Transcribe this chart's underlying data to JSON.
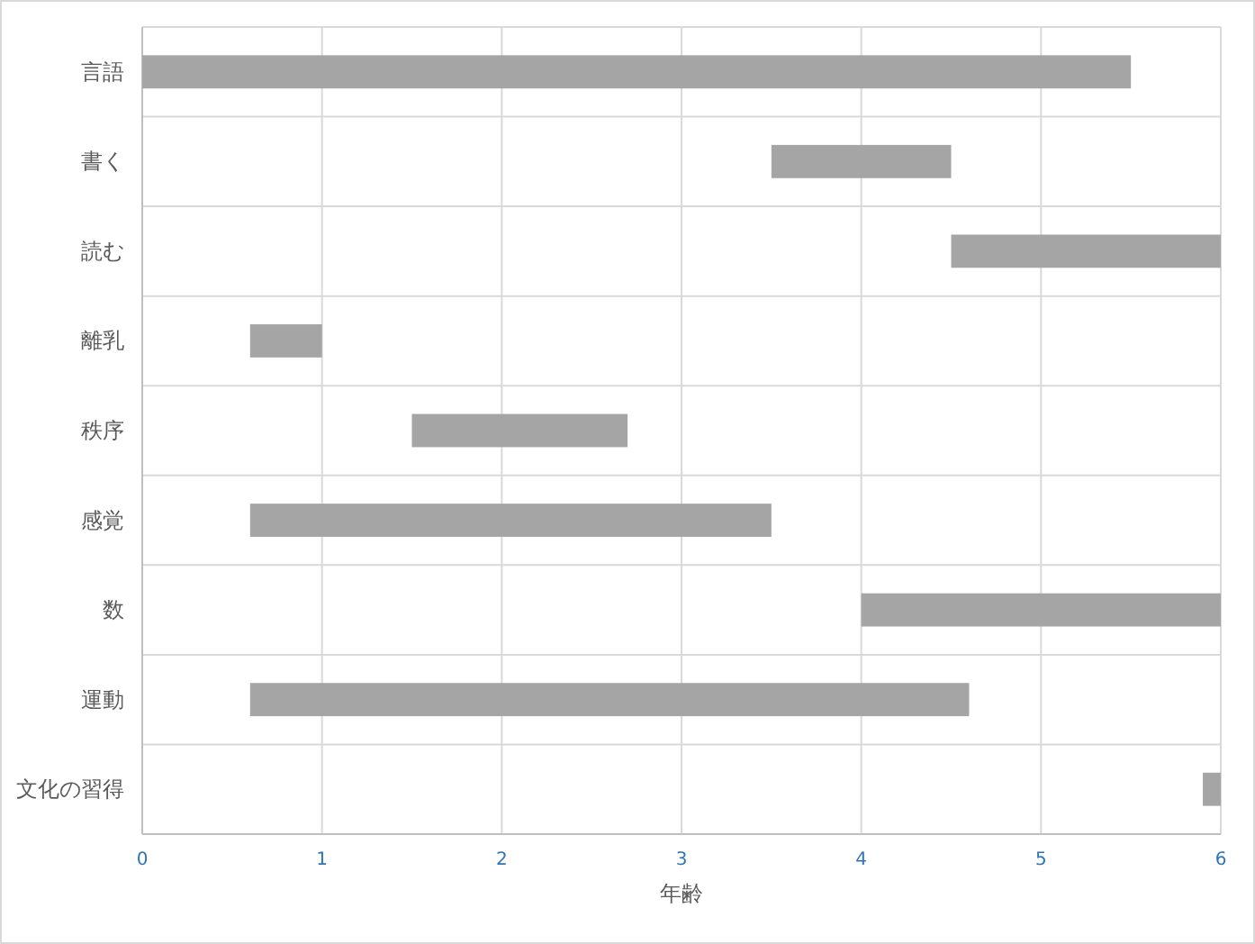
{
  "chart_data": {
    "type": "bar",
    "orientation": "horizontal",
    "xlabel": "年齢",
    "categories": [
      "言語",
      "書く",
      "読む",
      "離乳",
      "秩序",
      "感覚",
      "数",
      "運動",
      "文化の習得"
    ],
    "base": [
      0,
      3.5,
      4.5,
      0.6,
      1.5,
      0.6,
      4.0,
      0.6,
      5.9
    ],
    "values": [
      5.5,
      1.0,
      1.5,
      0.4,
      1.2,
      2.9,
      2.0,
      4.0,
      0.1
    ],
    "color": "#a5a5a5",
    "xlim": [
      0,
      6
    ],
    "xticks": [
      0,
      1,
      2,
      3,
      4,
      5,
      6
    ],
    "grid": true
  }
}
